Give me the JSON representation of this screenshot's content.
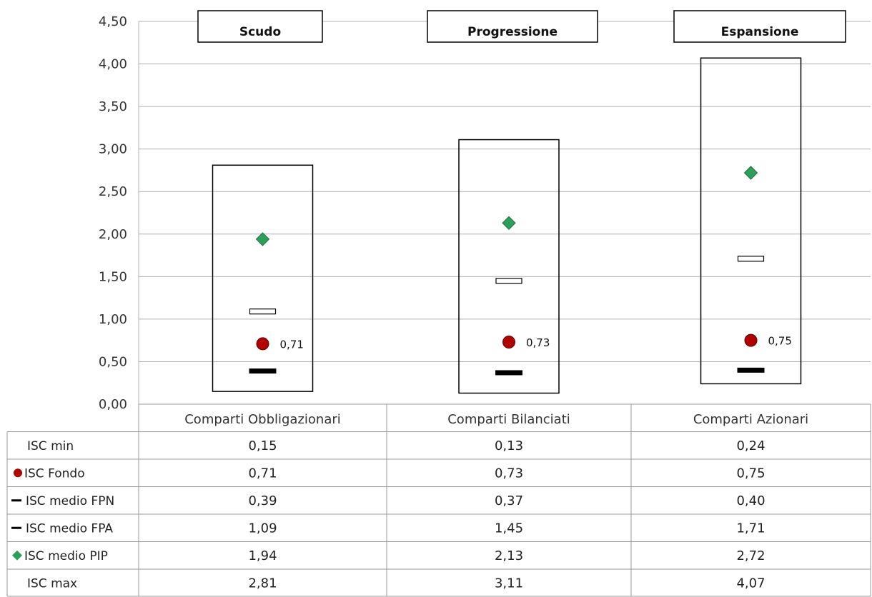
{
  "chart_data": {
    "type": "box-range",
    "ylim": [
      0,
      4.5
    ],
    "ytick_step": 0.5,
    "yticks": [
      "0,00",
      "0,50",
      "1,00",
      "1,50",
      "2,00",
      "2,50",
      "3,00",
      "3,50",
      "4,00",
      "4,50"
    ],
    "categories": [
      "Comparti Obbligazionari",
      "Comparti Bilanciati",
      "Comparti Azionari"
    ],
    "panel_titles": [
      "Scudo",
      "Progressione",
      "Espansione"
    ],
    "grid": true,
    "colors": {
      "fondo": "#b00000",
      "pip": "#2e9e5b",
      "fpn": "#000000",
      "fpa": "#ffffff"
    },
    "series": [
      {
        "name": "ISC min",
        "values": [
          0.15,
          0.13,
          0.24
        ],
        "labels": [
          "0,15",
          "0,13",
          "0,24"
        ]
      },
      {
        "name": "ISC Fondo",
        "values": [
          0.71,
          0.73,
          0.75
        ],
        "labels": [
          "0,71",
          "0,73",
          "0,75"
        ]
      },
      {
        "name": "ISC medio FPN",
        "values": [
          0.39,
          0.37,
          0.4
        ],
        "labels": [
          "0,39",
          "0,37",
          "0,40"
        ]
      },
      {
        "name": "ISC medio FPA",
        "values": [
          1.09,
          1.45,
          1.71
        ],
        "labels": [
          "1,09",
          "1,45",
          "1,71"
        ]
      },
      {
        "name": "ISC medio PIP",
        "values": [
          1.94,
          2.13,
          2.72
        ],
        "labels": [
          "1,94",
          "2,13",
          "2,72"
        ]
      },
      {
        "name": "ISC max",
        "values": [
          2.81,
          3.11,
          4.07
        ],
        "labels": [
          "2,81",
          "3,11",
          "4,07"
        ]
      }
    ],
    "legend_markers": [
      "none",
      "circle",
      "dash-black",
      "dash-black",
      "diamond",
      "none"
    ]
  }
}
